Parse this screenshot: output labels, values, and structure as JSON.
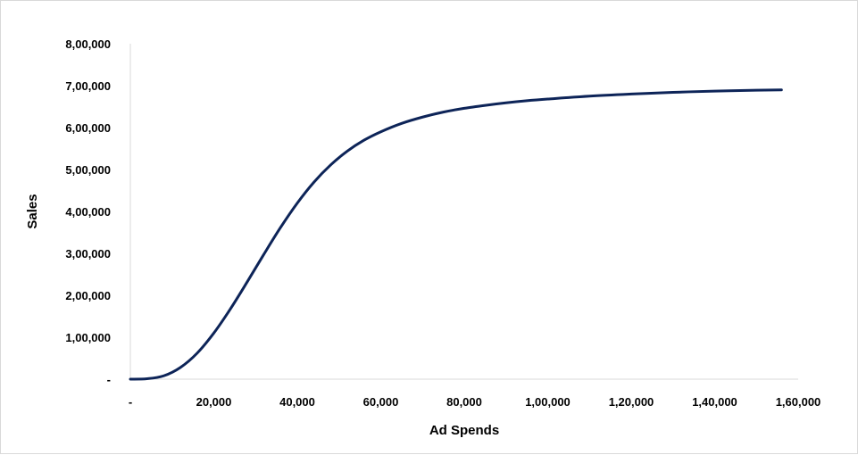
{
  "chart_data": {
    "type": "line",
    "title": "",
    "xlabel": "Ad Spends",
    "ylabel": "Sales",
    "xlim": [
      0,
      160000
    ],
    "ylim": [
      0,
      800000
    ],
    "grid": false,
    "legend": "none",
    "x_ticks": [
      {
        "value": 0,
        "label": "-"
      },
      {
        "value": 20000,
        "label": "20,000"
      },
      {
        "value": 40000,
        "label": "40,000"
      },
      {
        "value": 60000,
        "label": "60,000"
      },
      {
        "value": 80000,
        "label": "80,000"
      },
      {
        "value": 100000,
        "label": "1,00,000"
      },
      {
        "value": 120000,
        "label": "1,20,000"
      },
      {
        "value": 140000,
        "label": "1,40,000"
      },
      {
        "value": 160000,
        "label": "1,60,000"
      }
    ],
    "y_ticks": [
      {
        "value": 0,
        "label": "-"
      },
      {
        "value": 100000,
        "label": "1,00,000"
      },
      {
        "value": 200000,
        "label": "2,00,000"
      },
      {
        "value": 300000,
        "label": "3,00,000"
      },
      {
        "value": 400000,
        "label": "4,00,000"
      },
      {
        "value": 500000,
        "label": "5,00,000"
      },
      {
        "value": 600000,
        "label": "6,00,000"
      },
      {
        "value": 700000,
        "label": "7,00,000"
      },
      {
        "value": 800000,
        "label": "8,00,000"
      }
    ],
    "series": [
      {
        "color": "#0d2458",
        "x": [
          0,
          4000,
          8000,
          12000,
          16000,
          20000,
          24000,
          28000,
          32000,
          36000,
          40000,
          44000,
          48000,
          52000,
          56000,
          60000,
          65000,
          70000,
          75000,
          80000,
          85000,
          90000,
          95000,
          100000,
          110000,
          120000,
          130000,
          140000,
          150000,
          156000
        ],
        "y": [
          0,
          1000,
          8000,
          28000,
          62000,
          110000,
          168000,
          232000,
          298000,
          362000,
          420000,
          470000,
          511000,
          544000,
          570000,
          590000,
          610000,
          625000,
          637000,
          646000,
          653000,
          659000,
          664000,
          668000,
          675000,
          680000,
          684000,
          687000,
          689000,
          690000
        ]
      }
    ]
  }
}
